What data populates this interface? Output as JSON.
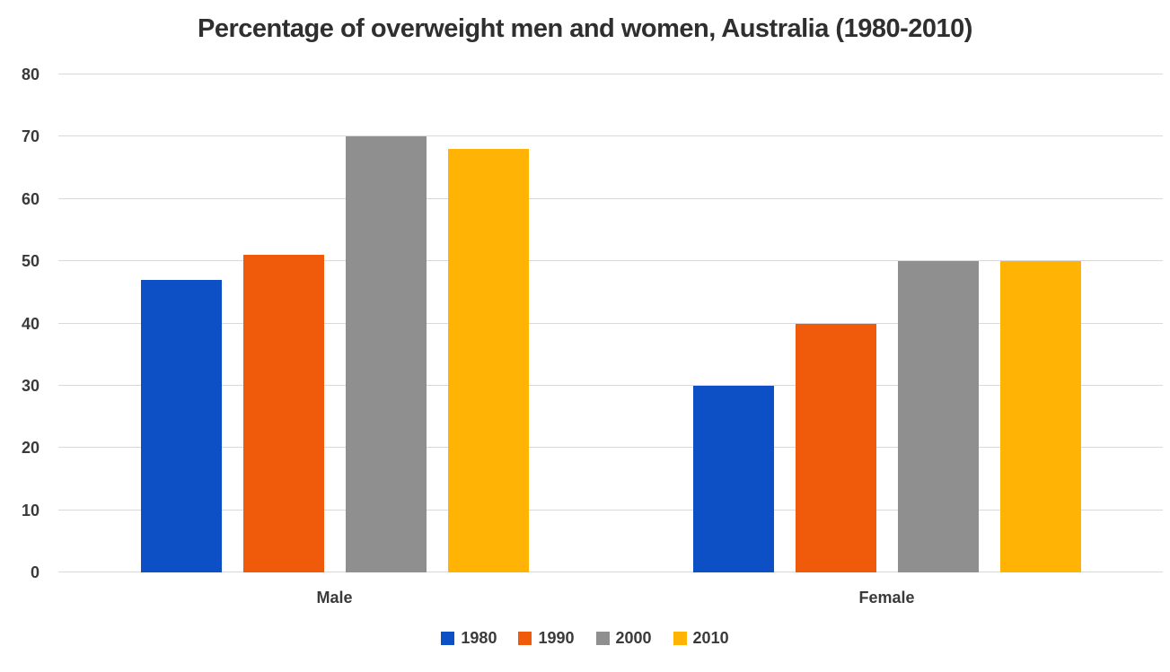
{
  "chart_data": {
    "type": "bar",
    "title": "Percentage of overweight men and women, Australia (1980-2010)",
    "categories": [
      "Male",
      "Female"
    ],
    "series": [
      {
        "name": "1980",
        "color": "#0d4fc4",
        "values": [
          47,
          30
        ]
      },
      {
        "name": "1990",
        "color": "#f05a0b",
        "values": [
          51,
          40
        ]
      },
      {
        "name": "2000",
        "color": "#8f8f8f",
        "values": [
          70,
          50
        ]
      },
      {
        "name": "2010",
        "color": "#ffb405",
        "values": [
          68,
          50
        ]
      }
    ],
    "xlabel": "",
    "ylabel": "",
    "ylim": [
      0,
      80
    ],
    "yticks": [
      0,
      10,
      20,
      30,
      40,
      50,
      60,
      70,
      80
    ],
    "grid": true,
    "gridline_color": "#d9d9d9",
    "legend_position": "bottom"
  }
}
